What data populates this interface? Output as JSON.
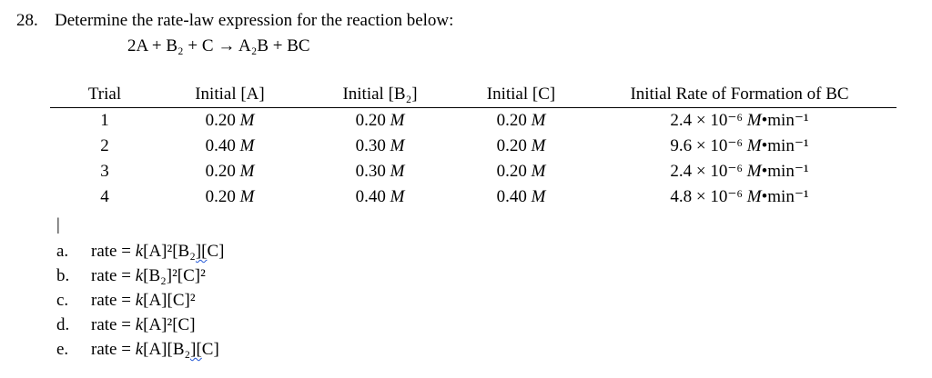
{
  "question": {
    "number": "28.",
    "text": "Determine the rate-law expression for the reaction below:",
    "equation": "2A + B₂ + C → A₂B + BC"
  },
  "cursor": "|",
  "table": {
    "headers": [
      "Trial",
      "Initial [A]",
      "Initial [B₂]",
      "Initial [C]",
      "Initial Rate of Formation of BC"
    ],
    "conc_unit": "M",
    "rate_unit_m": "M",
    "rate_unit_rest": "•min⁻¹",
    "rows": [
      {
        "trial": "1",
        "a": "0.20",
        "b": "0.20",
        "c": "0.20",
        "rate": "2.4 × 10⁻⁶"
      },
      {
        "trial": "2",
        "a": "0.40",
        "b": "0.30",
        "c": "0.20",
        "rate": "9.6 × 10⁻⁶"
      },
      {
        "trial": "3",
        "a": "0.20",
        "b": "0.30",
        "c": "0.20",
        "rate": "2.4 × 10⁻⁶"
      },
      {
        "trial": "4",
        "a": "0.20",
        "b": "0.40",
        "c": "0.40",
        "rate": "4.8 × 10⁻⁶"
      }
    ]
  },
  "choices": {
    "rate_prefix": "rate = ",
    "k": "k",
    "items": [
      {
        "letter": "a.",
        "pre": "[A]²[B",
        "marked": "₂][",
        "post": "C]"
      },
      {
        "letter": "b.",
        "pre": "[B₂]²[C]²",
        "marked": "",
        "post": ""
      },
      {
        "letter": "c.",
        "pre": "[A][C]²",
        "marked": "",
        "post": ""
      },
      {
        "letter": "d.",
        "pre": "[A]²[C]",
        "marked": "",
        "post": ""
      },
      {
        "letter": "e.",
        "pre": "[A][B",
        "marked": "₂][",
        "post": "C]"
      }
    ]
  }
}
